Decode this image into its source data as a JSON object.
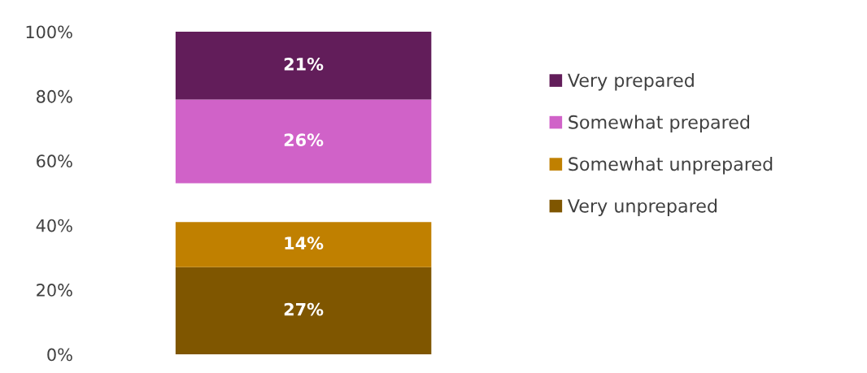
{
  "chart_data": {
    "type": "bar",
    "categories": [
      null
    ],
    "series": [
      {
        "name": "Very unprepared",
        "color": "#7f5600",
        "values": [
          27
        ],
        "base": [
          0
        ],
        "value_labels": [
          "27%"
        ]
      },
      {
        "name": "Somewhat unprepared",
        "color": "#c08000",
        "values": [
          14
        ],
        "base": [
          27
        ],
        "value_labels": [
          "14%"
        ]
      },
      {
        "name": "Somewhat prepared",
        "color": "#d062c8",
        "values": [
          26
        ],
        "base": [
          53
        ],
        "value_labels": [
          "26%"
        ]
      },
      {
        "name": "Very prepared",
        "color": "#621d5a",
        "values": [
          21
        ],
        "base": [
          79
        ],
        "value_labels": [
          "21%"
        ]
      }
    ],
    "ylim": [
      0,
      100
    ],
    "yticks": [
      {
        "value": 0,
        "label": "0%"
      },
      {
        "value": 20,
        "label": "20%"
      },
      {
        "value": 40,
        "label": "40%"
      },
      {
        "value": 60,
        "label": "60%"
      },
      {
        "value": 80,
        "label": "80%"
      },
      {
        "value": 100,
        "label": "100%"
      }
    ],
    "grid": false,
    "legend": "right"
  }
}
